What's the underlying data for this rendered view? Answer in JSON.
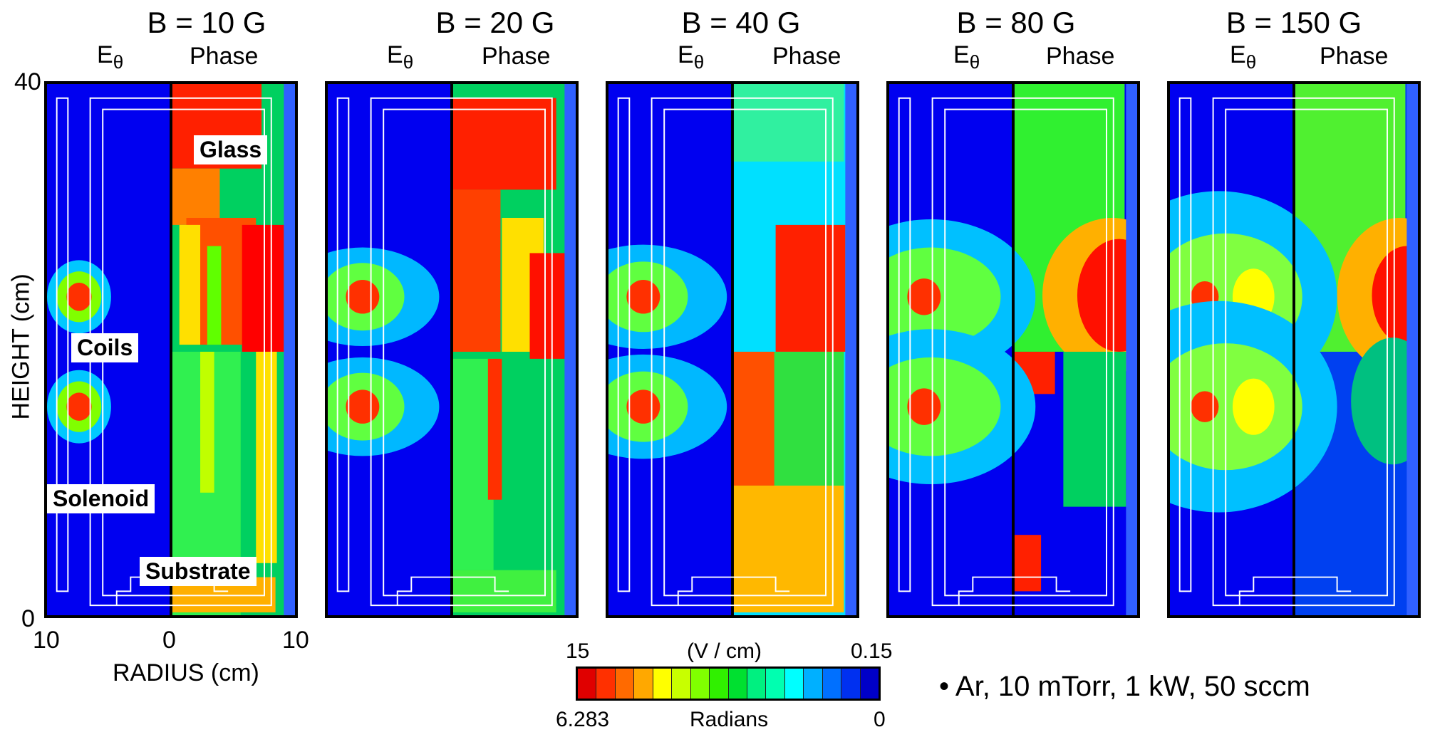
{
  "panels": [
    {
      "title": "B = 10 G",
      "e_label": "E",
      "e_sub": "θ",
      "phase_label": "Phase"
    },
    {
      "title": "B = 20 G",
      "e_label": "E",
      "e_sub": "θ",
      "phase_label": "Phase"
    },
    {
      "title": "B = 40 G",
      "e_label": "E",
      "e_sub": "θ",
      "phase_label": "Phase"
    },
    {
      "title": "B = 80 G",
      "e_label": "E",
      "e_sub": "θ",
      "phase_label": "Phase"
    },
    {
      "title": "B = 150 G",
      "e_label": "E",
      "e_sub": "θ",
      "phase_label": "Phase"
    }
  ],
  "annotations": {
    "glass": "Glass",
    "coils": "Coils",
    "solenoid": "Solenoid",
    "substrate": "Substrate"
  },
  "axes": {
    "y_label": "HEIGHT (cm)",
    "y_ticks": [
      "40",
      "0"
    ],
    "x_label": "RADIUS (cm)",
    "x_ticks": [
      "10",
      "0",
      "10"
    ]
  },
  "colorbar": {
    "top_left": "15",
    "top_mid": "(V / cm)",
    "top_right": "0.15",
    "bottom_left": "6.283",
    "bottom_mid": "Radians",
    "bottom_right": "0",
    "colors": [
      "#e00000",
      "#ff3000",
      "#ff6a00",
      "#ffa800",
      "#ffff00",
      "#c8ff00",
      "#80ff00",
      "#30f000",
      "#00e030",
      "#00f080",
      "#00ffb0",
      "#00ffff",
      "#00b0ff",
      "#0070ff",
      "#0030f0",
      "#0000c8"
    ]
  },
  "conditions": "• Ar, 10 mTorr, 1 kW, 50 sccm"
}
